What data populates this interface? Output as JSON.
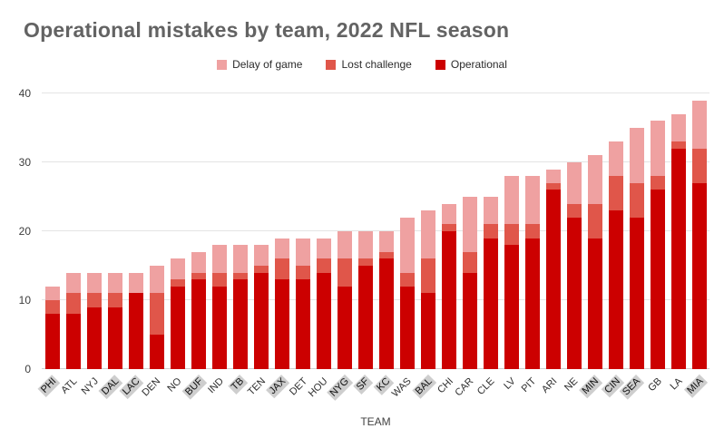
{
  "chart_data": {
    "type": "bar",
    "variant": "stacked-vertical",
    "title": "Operational mistakes by team, 2022 NFL season",
    "xlabel": "TEAM",
    "ylabel": "",
    "ylim": [
      0,
      40
    ],
    "yticks": [
      0,
      10,
      20,
      30,
      40
    ],
    "grid": true,
    "legend_position": "top-center",
    "legend_order": [
      "Delay of game",
      "Lost challenge",
      "Operational"
    ],
    "stack_order_bottom_to_top": [
      "Operational",
      "Lost challenge",
      "Delay of game"
    ],
    "series_colors": {
      "Delay of game": "#efa1a1",
      "Lost challenge": "#e0564a",
      "Operational": "#cc0000"
    },
    "categories": [
      "PHI",
      "ATL",
      "NYJ",
      "DAL",
      "LAC",
      "DEN",
      "NO",
      "BUF",
      "IND",
      "TB",
      "TEN",
      "JAX",
      "DET",
      "HOU",
      "NYG",
      "SF",
      "KC",
      "WAS",
      "BAL",
      "CHI",
      "CAR",
      "CLE",
      "LV",
      "PIT",
      "ARI",
      "NE",
      "MIN",
      "CIN",
      "SEA",
      "GB",
      "LA",
      "MIA"
    ],
    "highlighted_categories": [
      "PHI",
      "DAL",
      "LAC",
      "BUF",
      "TB",
      "JAX",
      "NYG",
      "SF",
      "KC",
      "BAL",
      "MIN",
      "CIN",
      "SEA",
      "MIA"
    ],
    "series": [
      {
        "name": "Operational",
        "color": "#cc0000",
        "values": [
          8,
          8,
          9,
          9,
          11,
          5,
          12,
          13,
          12,
          13,
          14,
          13,
          13,
          14,
          12,
          15,
          16,
          12,
          11,
          20,
          14,
          19,
          18,
          19,
          26,
          22,
          19,
          23,
          22,
          26,
          32,
          27
        ]
      },
      {
        "name": "Lost challenge",
        "color": "#e0564a",
        "values": [
          2,
          3,
          2,
          2,
          0,
          6,
          1,
          1,
          2,
          1,
          1,
          3,
          2,
          2,
          4,
          1,
          1,
          2,
          5,
          1,
          3,
          2,
          3,
          2,
          1,
          2,
          5,
          5,
          5,
          2,
          1,
          5
        ]
      },
      {
        "name": "Delay of game",
        "color": "#efa1a1",
        "values": [
          2,
          3,
          3,
          3,
          3,
          4,
          3,
          3,
          4,
          4,
          3,
          3,
          4,
          3,
          4,
          4,
          3,
          8,
          7,
          3,
          8,
          4,
          7,
          7,
          2,
          6,
          7,
          5,
          8,
          8,
          4,
          7
        ]
      }
    ],
    "totals": [
      12,
      14,
      14,
      14,
      14,
      15,
      16,
      17,
      18,
      18,
      18,
      19,
      19,
      19,
      20,
      20,
      20,
      22,
      23,
      24,
      25,
      25,
      28,
      28,
      29,
      30,
      31,
      33,
      35,
      36,
      37,
      39
    ]
  }
}
